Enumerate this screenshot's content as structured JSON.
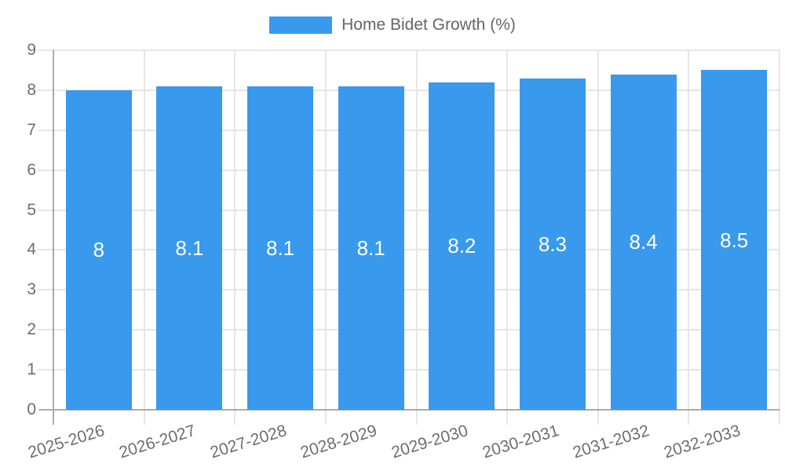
{
  "chart_data": {
    "type": "bar",
    "title": "Home Bidet Growth (%)",
    "legend_position": "top",
    "categories": [
      "2025-2026",
      "2026-2027",
      "2027-2028",
      "2028-2029",
      "2029-2030",
      "2030-2031",
      "2031-2032",
      "2032-2033"
    ],
    "values": [
      8,
      8.1,
      8.1,
      8.1,
      8.2,
      8.3,
      8.4,
      8.5
    ],
    "value_labels": [
      "8",
      "8.1",
      "8.1",
      "8.1",
      "8.2",
      "8.3",
      "8.4",
      "8.5"
    ],
    "xlabel": "",
    "ylabel": "",
    "ylim": [
      0,
      9
    ],
    "yticks": [
      0,
      1,
      2,
      3,
      4,
      5,
      6,
      7,
      8,
      9
    ],
    "grid": true,
    "x_label_rotation_deg": -17,
    "colors": {
      "bar": "#3999EC",
      "bar_value_text": "#ffffff",
      "axis_text": "#6e6e6e",
      "legend_text": "#666666",
      "gridline": "#e6e6e6",
      "axis_line": "#ababab"
    }
  }
}
